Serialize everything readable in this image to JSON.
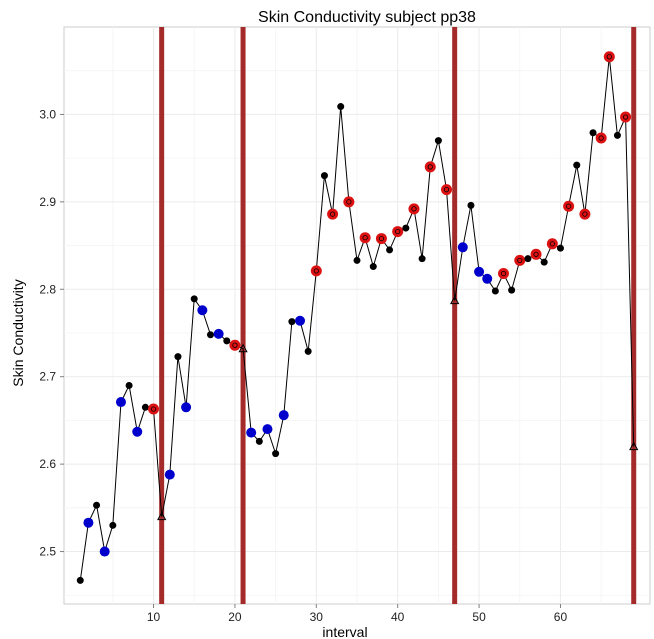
{
  "chart_data": {
    "type": "line",
    "title": "Skin Conductivity  subject pp38",
    "xlabel": "interval",
    "ylabel": "Skin Conductivity",
    "xlim": [
      -1,
      71
    ],
    "ylim": [
      2.44,
      3.1
    ],
    "x_ticks": [
      10,
      20,
      30,
      40,
      50,
      60
    ],
    "y_ticks": [
      2.5,
      2.6,
      2.7,
      2.8,
      2.9,
      3.0
    ],
    "x_tick_labels": [
      "10",
      "20",
      "30",
      "40",
      "50",
      "60"
    ],
    "y_tick_labels": [
      "2.5",
      "2.6",
      "2.7",
      "2.8",
      "2.9",
      "3.0"
    ],
    "grid": true,
    "vertical_lines": [
      11,
      21,
      47,
      69
    ],
    "colors": {
      "line": "#000000",
      "blue": "#0000cc",
      "red": "#dd1111",
      "black": "#000000",
      "vline": "#a52a2a",
      "panel": "#ffffff",
      "grid": "#ebebeb"
    },
    "series": [
      {
        "x": [
          1,
          2,
          3,
          4,
          5,
          6,
          7,
          8,
          9,
          10,
          11,
          12,
          13,
          14,
          15,
          16,
          17,
          18,
          19,
          20,
          21,
          22,
          23,
          24,
          25,
          26,
          27,
          28,
          29,
          30,
          31,
          32,
          33,
          34,
          35,
          36,
          37,
          38,
          39,
          40,
          41,
          42,
          43,
          44,
          45,
          46,
          47,
          48,
          49,
          50,
          51,
          52,
          53,
          54,
          55,
          56,
          57,
          58,
          59,
          60,
          61,
          62,
          63,
          64,
          65,
          66,
          67,
          68,
          69
        ],
        "y": [
          2.467,
          2.533,
          2.553,
          2.5,
          2.53,
          2.671,
          2.69,
          2.637,
          2.665,
          2.663,
          2.54,
          2.588,
          2.723,
          2.665,
          2.789,
          2.776,
          2.748,
          2.749,
          2.741,
          2.736,
          2.732,
          2.636,
          2.626,
          2.64,
          2.612,
          2.656,
          2.763,
          2.764,
          2.729,
          2.821,
          2.93,
          2.886,
          3.009,
          2.9,
          2.833,
          2.859,
          2.826,
          2.858,
          2.845,
          2.866,
          2.87,
          2.892,
          2.835,
          2.94,
          2.97,
          2.914,
          2.787,
          2.848,
          2.896,
          2.82,
          2.812,
          2.798,
          2.818,
          2.799,
          2.833,
          2.835,
          2.84,
          2.831,
          2.852,
          2.847,
          2.895,
          2.942,
          2.886,
          2.979,
          2.973,
          3.066,
          2.976,
          2.997,
          2.62
        ],
        "marker": [
          "black",
          "blue",
          "black",
          "blue",
          "black",
          "blue",
          "black",
          "blue",
          "black",
          "red",
          "triangle",
          "blue",
          "black",
          "blue",
          "black",
          "blue",
          "black",
          "blue",
          "black",
          "red",
          "triangle",
          "blue",
          "black",
          "blue",
          "black",
          "blue",
          "black",
          "blue",
          "black",
          "red",
          "black",
          "red",
          "black",
          "red",
          "black",
          "red",
          "black",
          "red",
          "black",
          "red",
          "black",
          "red",
          "black",
          "red",
          "black",
          "red",
          "triangle",
          "blue",
          "black",
          "blue",
          "blue",
          "black",
          "red",
          "black",
          "red",
          "black",
          "red",
          "black",
          "red",
          "black",
          "red",
          "black",
          "red",
          "black",
          "red",
          "red",
          "black",
          "red",
          "triangle"
        ]
      }
    ]
  }
}
